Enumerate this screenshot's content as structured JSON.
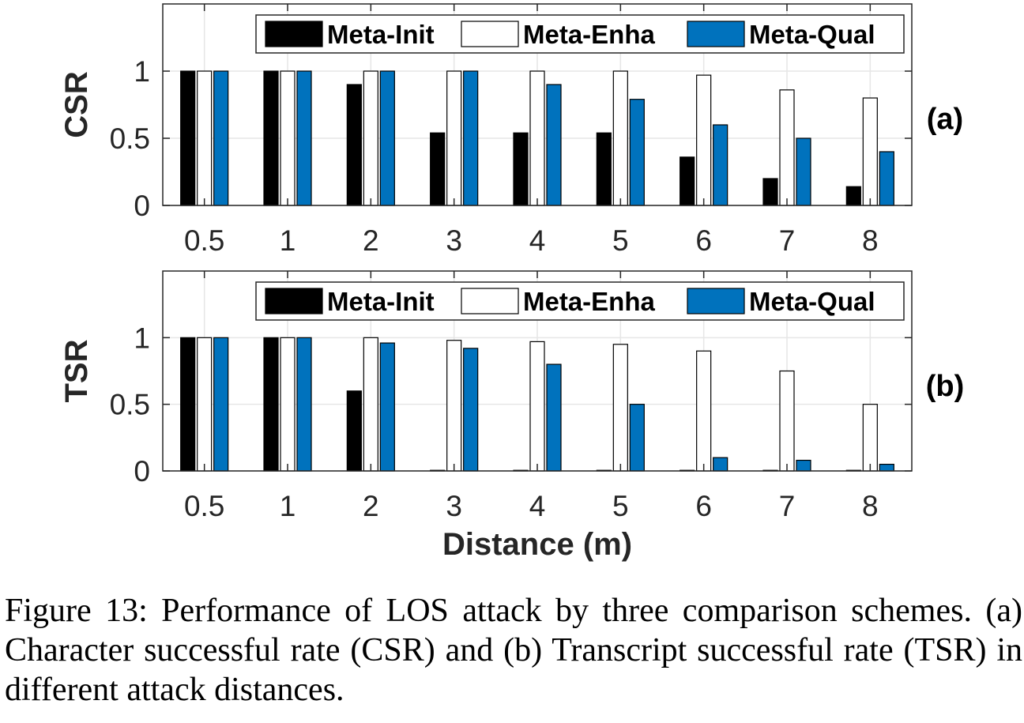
{
  "chart_data": [
    {
      "type": "bar",
      "panel_label": "(a)",
      "ylabel": "CSR",
      "xlabel": "",
      "categories": [
        "0.5",
        "1",
        "2",
        "3",
        "4",
        "5",
        "6",
        "7",
        "8"
      ],
      "ylim": [
        0,
        1.5
      ],
      "yticks": [
        "0",
        "0.5",
        "1"
      ],
      "grid": true,
      "legend_position": "top-right, horizontal",
      "series": [
        {
          "name": "Meta-Init",
          "color": "#000000",
          "values": [
            1.0,
            1.0,
            0.9,
            0.54,
            0.54,
            0.54,
            0.36,
            0.2,
            0.14
          ]
        },
        {
          "name": "Meta-Enha",
          "color": "#ffffff",
          "values": [
            1.0,
            1.0,
            1.0,
            1.0,
            1.0,
            1.0,
            0.97,
            0.86,
            0.8
          ]
        },
        {
          "name": "Meta-Qual",
          "color": "#0072bd",
          "values": [
            1.0,
            1.0,
            1.0,
            1.0,
            0.9,
            0.79,
            0.6,
            0.5,
            0.4
          ]
        }
      ]
    },
    {
      "type": "bar",
      "panel_label": "(b)",
      "ylabel": "TSR",
      "xlabel": "Distance (m)",
      "categories": [
        "0.5",
        "1",
        "2",
        "3",
        "4",
        "5",
        "6",
        "7",
        "8"
      ],
      "ylim": [
        0,
        1.5
      ],
      "yticks": [
        "0",
        "0.5",
        "1"
      ],
      "grid": true,
      "legend_position": "top-right, horizontal",
      "series": [
        {
          "name": "Meta-Init",
          "color": "#000000",
          "values": [
            1.0,
            1.0,
            0.6,
            0,
            0,
            0,
            0,
            0,
            0
          ]
        },
        {
          "name": "Meta-Enha",
          "color": "#ffffff",
          "values": [
            1.0,
            1.0,
            1.0,
            0.98,
            0.97,
            0.95,
            0.9,
            0.75,
            0.5
          ]
        },
        {
          "name": "Meta-Qual",
          "color": "#0072bd",
          "values": [
            1.0,
            1.0,
            0.96,
            0.92,
            0.8,
            0.5,
            0.1,
            0.08,
            0.05
          ]
        }
      ]
    }
  ],
  "caption": "Figure 13: Performance of LOS attack by three comparison schemes. (a) Character successful rate (CSR) and (b) Transcript successful rate (TSR) in different attack distances."
}
